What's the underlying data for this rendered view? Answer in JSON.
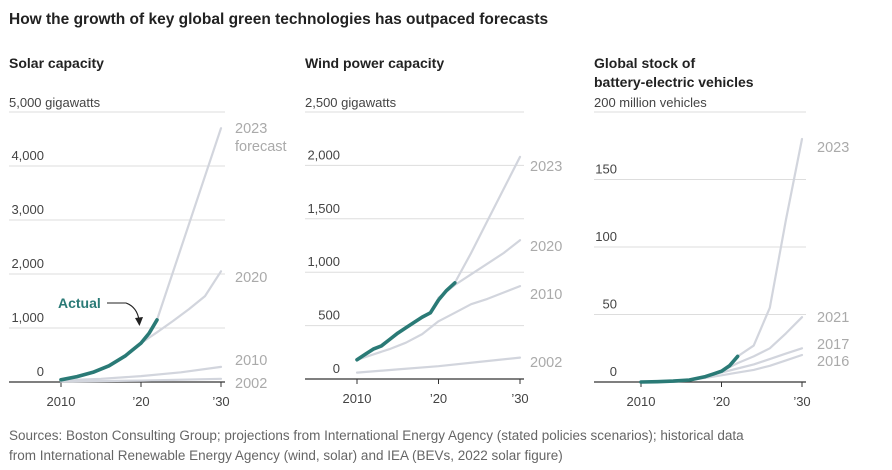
{
  "title": "How the growth of key global green technologies has outpaced forecasts",
  "source": [
    "Sources: Boston Consulting Group; projections from International Energy Agency (stated policies scenarios); historical data",
    "from International Renewable Energy Agency (wind, solar) and IEA (BEVs, 2022 solar figure)"
  ],
  "colors": {
    "actual": "#2a7a76",
    "forecast": "#d2d5dd",
    "grid": "#dddddd",
    "axis": "#333333"
  },
  "chart_data": [
    {
      "type": "line",
      "title": "Solar capacity",
      "unit_label": "5,000 gigawatts",
      "ylim": [
        0,
        5000
      ],
      "xlim": [
        2010,
        2030
      ],
      "yticks": [
        0,
        1000,
        2000,
        3000,
        4000,
        5000
      ],
      "ytick_labels": [
        "0",
        "1,000",
        "2,000",
        "3,000",
        "4,000",
        ""
      ],
      "xticks": [
        2010,
        2020,
        2030
      ],
      "xtick_labels": [
        "2010",
        "’20",
        "’30"
      ],
      "actual": {
        "name": "Actual",
        "x": [
          2010,
          2012,
          2014,
          2016,
          2018,
          2020,
          2021,
          2022
        ],
        "y": [
          40,
          100,
          180,
          300,
          480,
          720,
          900,
          1150
        ]
      },
      "forecasts": [
        {
          "name": "2023 forecast",
          "label_lines": [
            "2023",
            "forecast"
          ],
          "x": [
            2022,
            2030
          ],
          "y": [
            1150,
            4700
          ]
        },
        {
          "name": "2020",
          "label_lines": [
            "2020"
          ],
          "x": [
            2020,
            2022,
            2024,
            2026,
            2028,
            2030
          ],
          "y": [
            720,
            920,
            1130,
            1350,
            1590,
            2050
          ]
        },
        {
          "name": "2010",
          "label_lines": [
            "2010"
          ],
          "x": [
            2010,
            2015,
            2020,
            2025,
            2030
          ],
          "y": [
            30,
            60,
            110,
            180,
            280
          ]
        },
        {
          "name": "2002",
          "label_lines": [
            "2002"
          ],
          "x": [
            2010,
            2020,
            2030
          ],
          "y": [
            10,
            25,
            60
          ]
        }
      ]
    },
    {
      "type": "line",
      "title": "Wind power capacity",
      "unit_label": "2,500 gigawatts",
      "ylim": [
        0,
        2500
      ],
      "xlim": [
        2010,
        2030
      ],
      "yticks": [
        0,
        500,
        1000,
        1500,
        2000,
        2500
      ],
      "ytick_labels": [
        "0",
        "500",
        "1,000",
        "1,500",
        "2,000",
        ""
      ],
      "xticks": [
        2010,
        2020,
        2030
      ],
      "xtick_labels": [
        "2010",
        "’20",
        "’30"
      ],
      "actual": {
        "name": "Actual",
        "x": [
          2010,
          2011,
          2012,
          2013,
          2014,
          2015,
          2016,
          2017,
          2018,
          2019,
          2020,
          2021,
          2022
        ],
        "y": [
          180,
          230,
          280,
          310,
          370,
          430,
          480,
          530,
          580,
          620,
          740,
          830,
          900
        ]
      },
      "forecasts": [
        {
          "name": "2023",
          "label_lines": [
            "2023"
          ],
          "x": [
            2022,
            2024,
            2026,
            2028,
            2030
          ],
          "y": [
            900,
            1180,
            1480,
            1780,
            2080
          ]
        },
        {
          "name": "2020",
          "label_lines": [
            "2020"
          ],
          "x": [
            2020,
            2022,
            2024,
            2026,
            2028,
            2030
          ],
          "y": [
            760,
            880,
            980,
            1080,
            1180,
            1300
          ]
        },
        {
          "name": "2010",
          "label_lines": [
            "2010"
          ],
          "x": [
            2010,
            2012,
            2014,
            2016,
            2018,
            2020,
            2022,
            2024,
            2026,
            2028,
            2030
          ],
          "y": [
            180,
            230,
            280,
            340,
            420,
            540,
            620,
            700,
            750,
            810,
            870
          ]
        },
        {
          "name": "2002",
          "label_lines": [
            "2002"
          ],
          "x": [
            2010,
            2015,
            2020,
            2025,
            2030
          ],
          "y": [
            60,
            90,
            120,
            160,
            200
          ]
        }
      ]
    },
    {
      "type": "line",
      "title": "Global stock of battery-electric vehicles",
      "title_lines": [
        "Global stock of",
        "battery-electric vehicles"
      ],
      "unit_label": "200 million vehicles",
      "ylim": [
        0,
        200
      ],
      "xlim": [
        2010,
        2030
      ],
      "yticks": [
        0,
        50,
        100,
        150,
        200
      ],
      "ytick_labels": [
        "0",
        "50",
        "100",
        "150",
        ""
      ],
      "xticks": [
        2010,
        2020,
        2030
      ],
      "xtick_labels": [
        "2010",
        "’20",
        "’30"
      ],
      "actual": {
        "name": "Actual",
        "x": [
          2010,
          2012,
          2014,
          2016,
          2018,
          2019,
          2020,
          2021,
          2022
        ],
        "y": [
          0,
          0.2,
          0.7,
          1.5,
          4,
          6,
          8,
          12,
          19
        ]
      },
      "forecasts": [
        {
          "name": "2023",
          "label_lines": [
            "2023"
          ],
          "x": [
            2022,
            2024,
            2026,
            2028,
            2030
          ],
          "y": [
            19,
            27,
            55,
            120,
            180
          ]
        },
        {
          "name": "2021",
          "label_lines": [
            "2021"
          ],
          "x": [
            2020,
            2022,
            2024,
            2026,
            2028,
            2030
          ],
          "y": [
            8,
            14,
            19,
            25,
            36,
            48
          ]
        },
        {
          "name": "2017",
          "label_lines": [
            "2017"
          ],
          "x": [
            2016,
            2018,
            2020,
            2022,
            2024,
            2026,
            2028,
            2030
          ],
          "y": [
            1.5,
            4,
            7,
            10,
            13,
            17,
            21,
            25
          ]
        },
        {
          "name": "2016",
          "label_lines": [
            "2016"
          ],
          "x": [
            2016,
            2018,
            2020,
            2022,
            2024,
            2026,
            2028,
            2030
          ],
          "y": [
            1.5,
            3,
            5,
            7,
            9,
            12,
            16,
            20
          ]
        }
      ]
    }
  ],
  "annotation": {
    "text": "Actual",
    "panel": 0
  }
}
